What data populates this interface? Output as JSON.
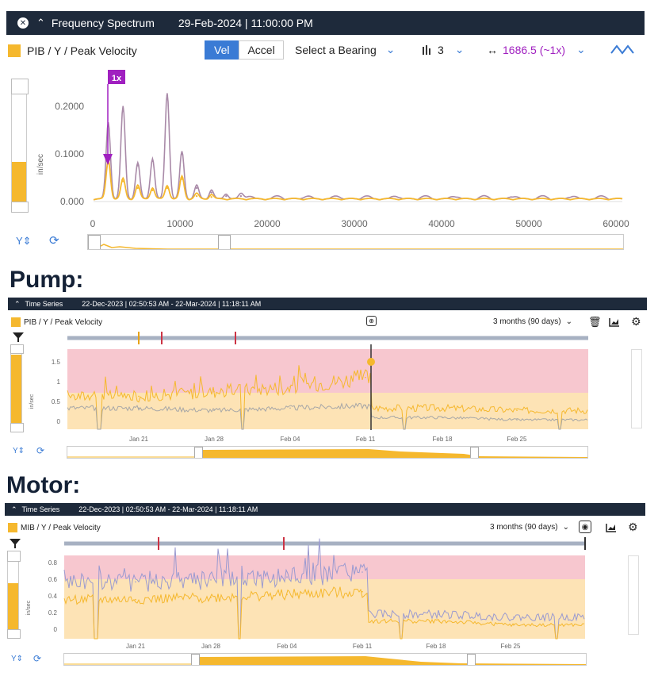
{
  "colors": {
    "header_bg": "#1e2a3b",
    "accent": "#f5b82e",
    "purple": "#a020c0",
    "purple_line": "#a98aa8",
    "red_zone": "#f7c7cf",
    "amber_zone": "#fde3b5",
    "grey_line": "#a7a7a7",
    "blue": "#3a7bd5"
  },
  "freq": {
    "title": "Frequency Spectrum",
    "timestamp": "29-Feb-2024 | 11:00:00 PM",
    "legend": "PIB / Y / Peak Velocity",
    "vel": "Vel",
    "accel": "Accel",
    "bearing_select": "Select a Bearing",
    "harmonics": "3",
    "speed": "1686.5 (~1x)",
    "marker": "1x",
    "ylabel": "in/sec",
    "y_ticks": [
      "0.2000",
      "0.1000",
      "0.000"
    ],
    "x_ticks": [
      "0",
      "10000",
      "20000",
      "30000",
      "40000",
      "50000",
      "60000"
    ],
    "y_axis_icon": "y-axis-scale-icon",
    "reset_icon": "reset-icon"
  },
  "pump": {
    "heading": "Pump:",
    "title": "Time Series",
    "range": "22-Dec-2023 | 02:50:53 AM - 22-Mar-2024 | 11:18:11 AM",
    "legend": "PIB / Y / Peak Velocity",
    "period": "3 months (90 days)",
    "ylabel": "in/sec",
    "y_ticks": [
      "1.5",
      "1",
      "0.5",
      "0"
    ],
    "x_ticks": [
      "Jan 21",
      "Jan 28",
      "Feb 04",
      "Feb 11",
      "Feb 18",
      "Feb 25"
    ]
  },
  "motor": {
    "heading": "Motor:",
    "title": "Time Series",
    "range": "22-Dec-2023 | 02:50:53 AM - 22-Mar-2024 | 11:18:11 AM",
    "legend": "MIB / Y / Peak Velocity",
    "period": "3 months (90 days)",
    "ylabel": "in/sec",
    "y_ticks": [
      "0.8",
      "0.6",
      "0.4",
      "0.2",
      "0"
    ],
    "x_ticks": [
      "Jan 21",
      "Jan 28",
      "Feb 04",
      "Feb 11",
      "Feb 18",
      "Feb 25"
    ]
  },
  "chart_data": [
    {
      "type": "line",
      "title": "Frequency Spectrum",
      "ylabel": "in/sec",
      "xlim": [
        0,
        61000
      ],
      "ylim": [
        0,
        0.25
      ],
      "series": [
        {
          "x": [
            1700,
            3400,
            5100,
            6800,
            8500,
            10200,
            11900,
            13600,
            15300,
            17000
          ],
          "values": [
            0.17,
            0.205,
            0.08,
            0.09,
            0.235,
            0.105,
            0.03,
            0.02,
            0.012,
            0.012
          ]
        },
        {
          "x": [
            1700,
            3400,
            5100,
            6800,
            8500,
            10200,
            11900,
            13600
          ],
          "values": [
            0.085,
            0.045,
            0.03,
            0.025,
            0.03,
            0.05,
            0.012,
            0.01
          ]
        }
      ]
    },
    {
      "type": "line",
      "title": "Time Series",
      "ylabel": "in/sec",
      "ylim": [
        0,
        1.7
      ],
      "categories": [
        "Jan 21",
        "Jan 28",
        "Feb 04",
        "Feb 11",
        "Feb 18",
        "Feb 25"
      ],
      "series": [
        {
          "values": [
            0.7,
            0.8,
            0.9,
            1.1,
            0.45,
            0.4
          ]
        },
        {
          "values": [
            0.45,
            0.4,
            0.45,
            0.5,
            0.25,
            0.2
          ]
        }
      ]
    },
    {
      "type": "line",
      "title": "Time Series",
      "ylabel": "in/sec",
      "ylim": [
        0,
        0.85
      ],
      "categories": [
        "Jan 21",
        "Jan 28",
        "Feb 04",
        "Feb 11",
        "Feb 18",
        "Feb 25"
      ],
      "series": [
        {
          "values": [
            0.58,
            0.6,
            0.63,
            0.68,
            0.25,
            0.22
          ]
        },
        {
          "values": [
            0.4,
            0.42,
            0.45,
            0.48,
            0.18,
            0.14
          ]
        }
      ]
    }
  ]
}
